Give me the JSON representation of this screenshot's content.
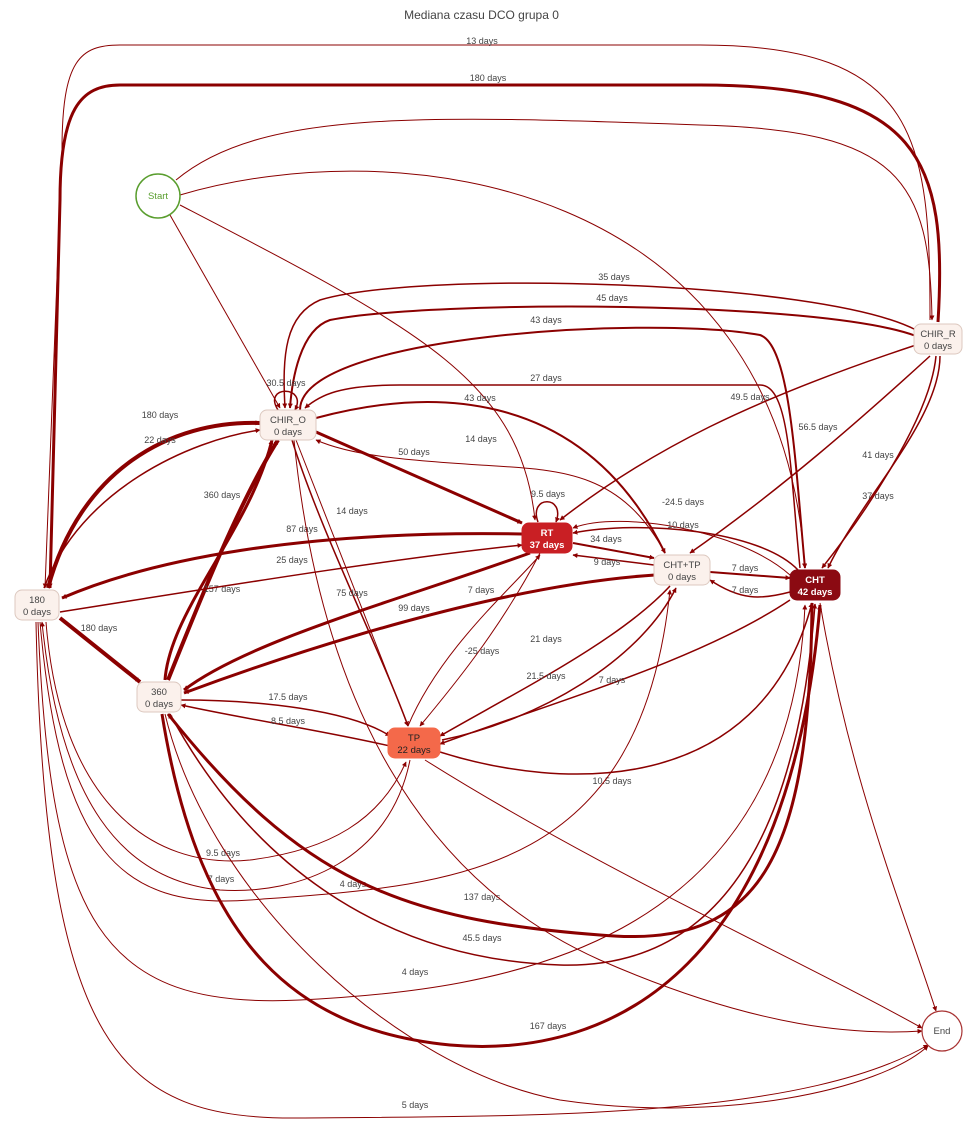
{
  "title": "Mediana czasu DCO grupa 0",
  "colors": {
    "edge": "#8b0000",
    "start_stroke": "#5a9e2f",
    "end_stroke": "#a83232",
    "neutral_fill": "#fbf1ec",
    "neutral_stroke": "#dcc8bf",
    "rt_fill": "#c91f24",
    "cht_fill": "#8b0a12",
    "tp_fill": "#f4694a"
  },
  "nodes": [
    {
      "id": "start",
      "label": "Start",
      "sub": "",
      "shape": "circle",
      "style": "start"
    },
    {
      "id": "chir_o",
      "label": "CHIR_O",
      "sub": "0 days",
      "shape": "box",
      "style": "neutral"
    },
    {
      "id": "chir_r",
      "label": "CHIR_R",
      "sub": "0 days",
      "shape": "box",
      "style": "neutral"
    },
    {
      "id": "rt",
      "label": "RT",
      "sub": "37 days",
      "shape": "box",
      "style": "rt"
    },
    {
      "id": "chttp",
      "label": "CHT+TP",
      "sub": "0 days",
      "shape": "box",
      "style": "neutral"
    },
    {
      "id": "cht",
      "label": "CHT",
      "sub": "42 days",
      "shape": "box",
      "style": "cht"
    },
    {
      "id": "n180",
      "label": "180",
      "sub": "0 days",
      "shape": "box",
      "style": "neutral"
    },
    {
      "id": "n360",
      "label": "360",
      "sub": "0 days",
      "shape": "box",
      "style": "neutral"
    },
    {
      "id": "tp",
      "label": "TP",
      "sub": "22 days",
      "shape": "box",
      "style": "tp"
    },
    {
      "id": "end",
      "label": "End",
      "sub": "",
      "shape": "circle",
      "style": "end"
    }
  ],
  "edges": [
    {
      "from": "chir_r",
      "to": "n180",
      "label": "13 days",
      "weight": 1
    },
    {
      "from": "chir_r",
      "to": "n180",
      "label": "180 days",
      "weight": 3
    },
    {
      "from": "start",
      "to": "chir_r",
      "label": "",
      "weight": 1
    },
    {
      "from": "start",
      "to": "cht",
      "label": "",
      "weight": 1
    },
    {
      "from": "start",
      "to": "chir_o",
      "label": "",
      "weight": 1
    },
    {
      "from": "start",
      "to": "rt",
      "label": "",
      "weight": 1
    },
    {
      "from": "chir_r",
      "to": "chir_o",
      "label": "35 days",
      "weight": 1.5
    },
    {
      "from": "chir_r",
      "to": "chir_o",
      "label": "45 days",
      "weight": 2
    },
    {
      "from": "chir_o",
      "to": "cht",
      "label": "43 days",
      "weight": 2
    },
    {
      "from": "cht",
      "to": "chir_o",
      "label": "27 days",
      "weight": 1.5
    },
    {
      "from": "chir_o",
      "to": "chir_o",
      "label": "30.5 days",
      "weight": 1.5
    },
    {
      "from": "chir_r",
      "to": "rt",
      "label": "49.5 days",
      "weight": 1.5
    },
    {
      "from": "chir_o",
      "to": "chttp",
      "label": "43 days",
      "weight": 2
    },
    {
      "from": "chir_o",
      "to": "rt",
      "label": "50 days",
      "weight": 3
    },
    {
      "from": "chttp",
      "to": "chir_o",
      "label": "14 days",
      "weight": 1
    },
    {
      "from": "chir_r",
      "to": "chttp",
      "label": "56.5 days",
      "weight": 1.5
    },
    {
      "from": "chir_r",
      "to": "cht",
      "label": "41 days",
      "weight": 1.5
    },
    {
      "from": "chir_r",
      "to": "cht",
      "label": "37 days",
      "weight": 1.5
    },
    {
      "from": "n180",
      "to": "chir_o",
      "label": "180 days",
      "weight": 4
    },
    {
      "from": "n180",
      "to": "chir_o",
      "label": "22 days",
      "weight": 1.5
    },
    {
      "from": "n360",
      "to": "chir_o",
      "label": "360 days",
      "weight": 4
    },
    {
      "from": "n360",
      "to": "chir_o",
      "label": "157 days",
      "weight": 3
    },
    {
      "from": "chir_o",
      "to": "tp",
      "label": "14 days",
      "weight": 1
    },
    {
      "from": "chir_o",
      "to": "tp",
      "label": "75 days",
      "weight": 1.5
    },
    {
      "from": "rt",
      "to": "rt",
      "label": "9.5 days",
      "weight": 1.5
    },
    {
      "from": "cht",
      "to": "rt",
      "label": "-24.5 days",
      "weight": 1
    },
    {
      "from": "cht",
      "to": "rt",
      "label": "10 days",
      "weight": 1.5
    },
    {
      "from": "rt",
      "to": "chttp",
      "label": "34 days",
      "weight": 2
    },
    {
      "from": "chttp",
      "to": "rt",
      "label": "9 days",
      "weight": 1.5
    },
    {
      "from": "chttp",
      "to": "cht",
      "label": "7 days",
      "weight": 2
    },
    {
      "from": "cht",
      "to": "chttp",
      "label": "7 days",
      "weight": 1.5
    },
    {
      "from": "rt",
      "to": "n180",
      "label": "87 days",
      "weight": 3
    },
    {
      "from": "n180",
      "to": "rt",
      "label": "25 days",
      "weight": 1.5
    },
    {
      "from": "rt",
      "to": "n360",
      "label": "99 days",
      "weight": 3
    },
    {
      "from": "chttp",
      "to": "n360",
      "label": "7 days",
      "weight": 3
    },
    {
      "from": "n180",
      "to": "n360",
      "label": "180 days",
      "weight": 4
    },
    {
      "from": "rt",
      "to": "tp",
      "label": "-25 days",
      "weight": 1
    },
    {
      "from": "tp",
      "to": "rt",
      "label": "",
      "weight": 1
    },
    {
      "from": "chttp",
      "to": "tp",
      "label": "21 days",
      "weight": 1.5
    },
    {
      "from": "tp",
      "to": "chttp",
      "label": "21.5 days",
      "weight": 1.5
    },
    {
      "from": "cht",
      "to": "tp",
      "label": "7 days",
      "weight": 1.5
    },
    {
      "from": "tp",
      "to": "cht",
      "label": "10.5 days",
      "weight": 1.5
    },
    {
      "from": "n360",
      "to": "tp",
      "label": "17.5 days",
      "weight": 1.5
    },
    {
      "from": "tp",
      "to": "n360",
      "label": "8.5 days",
      "weight": 1.5
    },
    {
      "from": "n180",
      "to": "tp",
      "label": "9.5 days",
      "weight": 1
    },
    {
      "from": "tp",
      "to": "n180",
      "label": "7 days",
      "weight": 1
    },
    {
      "from": "n180",
      "to": "chttp",
      "label": "4 days",
      "weight": 1
    },
    {
      "from": "cht",
      "to": "n360",
      "label": "137 days",
      "weight": 3
    },
    {
      "from": "n360",
      "to": "cht",
      "label": "45.5 days",
      "weight": 1.5
    },
    {
      "from": "n180",
      "to": "cht",
      "label": "4 days",
      "weight": 1
    },
    {
      "from": "n360",
      "to": "cht",
      "label": "167 days",
      "weight": 3
    },
    {
      "from": "n180",
      "to": "end",
      "label": "5 days",
      "weight": 1
    },
    {
      "from": "cht",
      "to": "end",
      "label": "",
      "weight": 1
    },
    {
      "from": "tp",
      "to": "end",
      "label": "",
      "weight": 1
    },
    {
      "from": "chir_o",
      "to": "end",
      "label": "",
      "weight": 1
    },
    {
      "from": "n360",
      "to": "end",
      "label": "",
      "weight": 1
    }
  ]
}
